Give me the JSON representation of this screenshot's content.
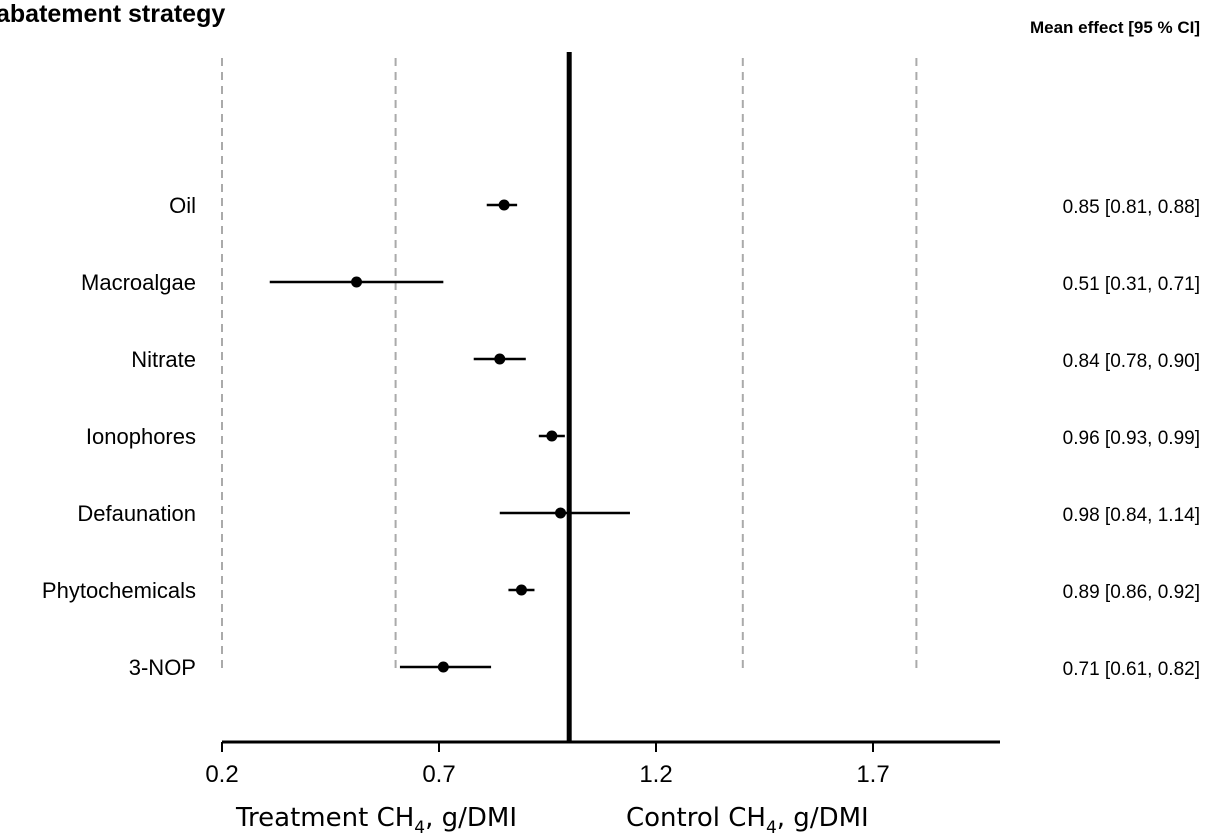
{
  "chart_data": {
    "type": "forest",
    "title": "abatement strategy",
    "column_header": "Mean effect  [95 % CI]",
    "categories": [
      "Oil",
      "Macroalgae",
      "Nitrate",
      "Ionophores",
      "Defaunation",
      "Phytochemicals",
      "3-NOP"
    ],
    "mean": [
      0.85,
      0.51,
      0.84,
      0.96,
      0.98,
      0.89,
      0.71
    ],
    "ci_low": [
      0.81,
      0.31,
      0.78,
      0.93,
      0.84,
      0.86,
      0.61
    ],
    "ci_high": [
      0.88,
      0.71,
      0.9,
      0.99,
      1.14,
      0.92,
      0.82
    ],
    "effect_labels": [
      "0.85 [0.81, 0.88]",
      "0.51 [0.31, 0.71]",
      "0.84 [0.78, 0.90]",
      "0.96 [0.93, 0.99]",
      "0.98 [0.84, 1.14]",
      "0.89 [0.86, 0.92]",
      "0.71 [0.61, 0.82]"
    ],
    "x_ticks": [
      0.2,
      0.7,
      1.2,
      1.7
    ],
    "x_tick_labels": [
      "0.2",
      "0.7",
      "1.2",
      "1.7"
    ],
    "xlim": [
      0.2,
      2.0
    ],
    "reference_line": 1.0,
    "dashed_lines": [
      0.2,
      0.6,
      1.4,
      1.8
    ],
    "xlabel_left": "Treatment CH",
    "xlabel_right": "Control  CH",
    "xlabel_subscript": "4",
    "xlabel_suffix": ", g/DMI"
  }
}
